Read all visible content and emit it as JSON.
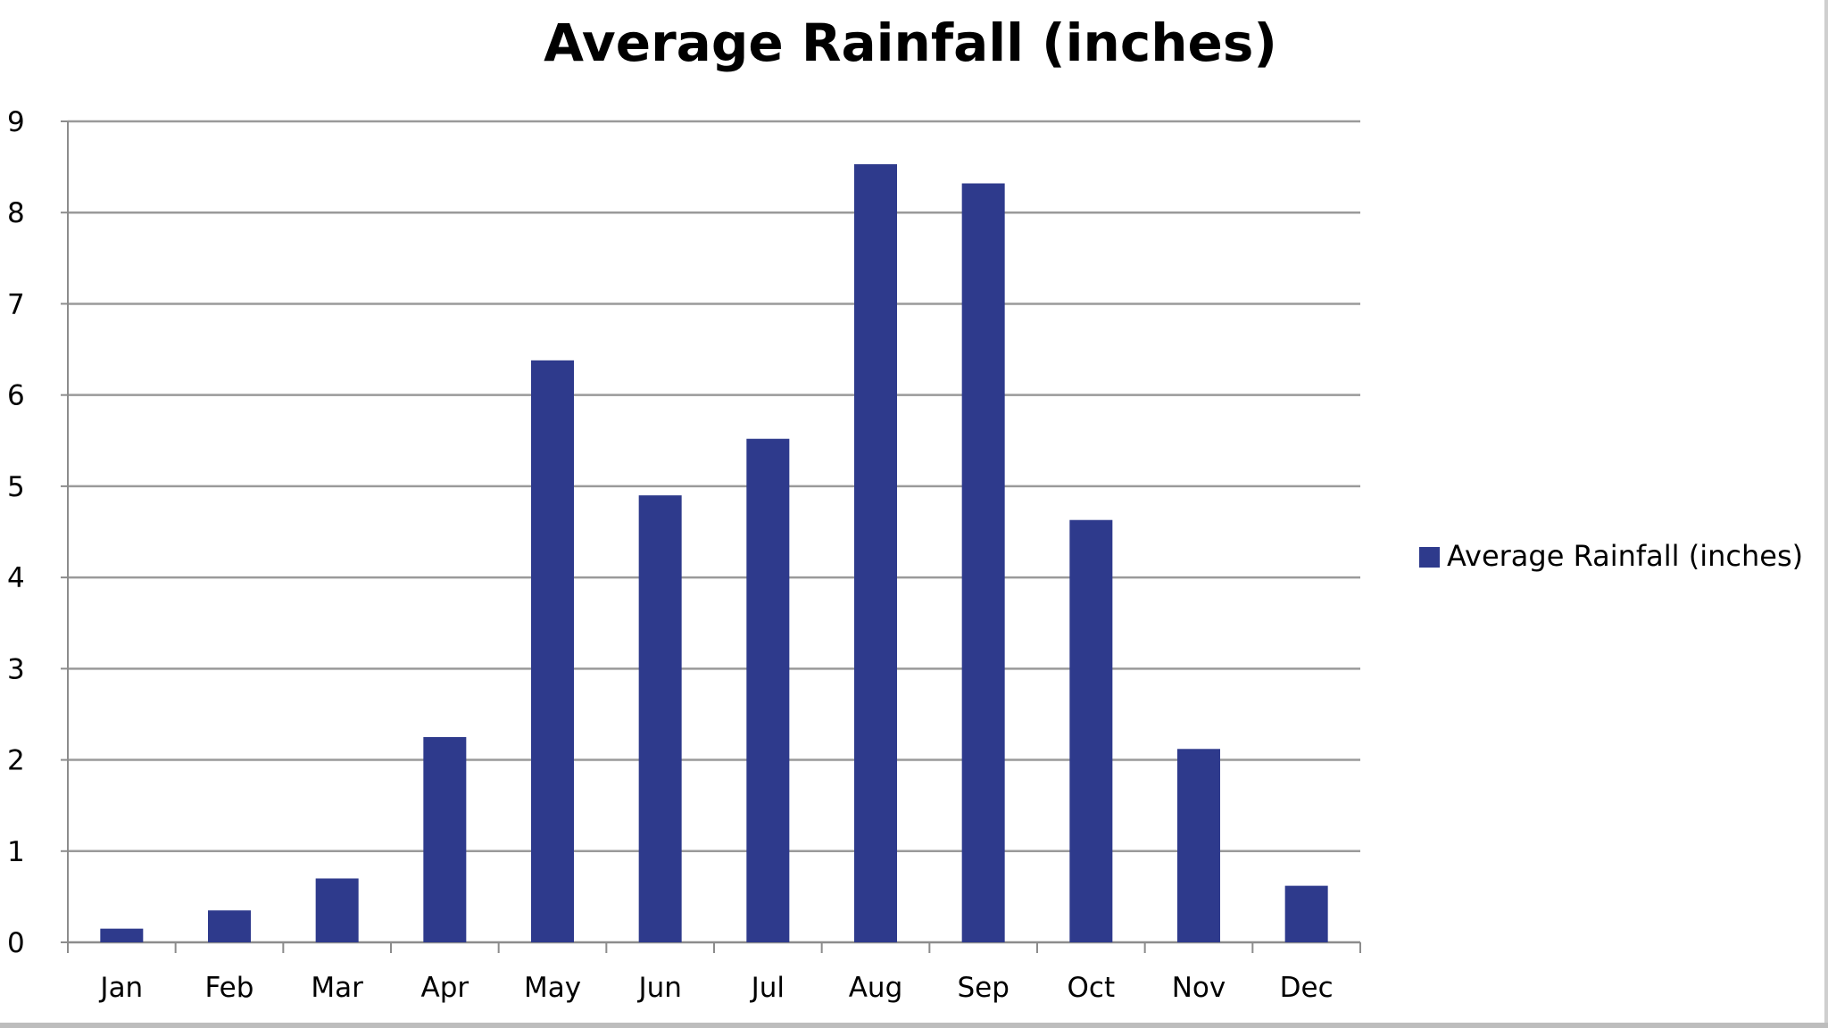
{
  "chart_data": {
    "type": "bar",
    "title": "Average Rainfall (inches)",
    "xlabel": "",
    "ylabel": "",
    "categories": [
      "Jan",
      "Feb",
      "Mar",
      "Apr",
      "May",
      "Jun",
      "Jul",
      "Aug",
      "Sep",
      "Oct",
      "Nov",
      "Dec"
    ],
    "series": [
      {
        "name": "Average Rainfall (inches)",
        "values": [
          0.15,
          0.35,
          0.7,
          2.25,
          6.38,
          4.9,
          5.52,
          8.53,
          8.32,
          4.63,
          2.12,
          0.62
        ]
      }
    ],
    "yticks": [
      "0",
      "1",
      "2",
      "3",
      "4",
      "5",
      "6",
      "7",
      "8",
      "9"
    ],
    "ylim": [
      0,
      9
    ],
    "grid": true,
    "legend_position": "right",
    "bar_color": "#2E3A8C",
    "gridline_color": "#9a9a9a",
    "axis_color": "#8c8c8c"
  }
}
